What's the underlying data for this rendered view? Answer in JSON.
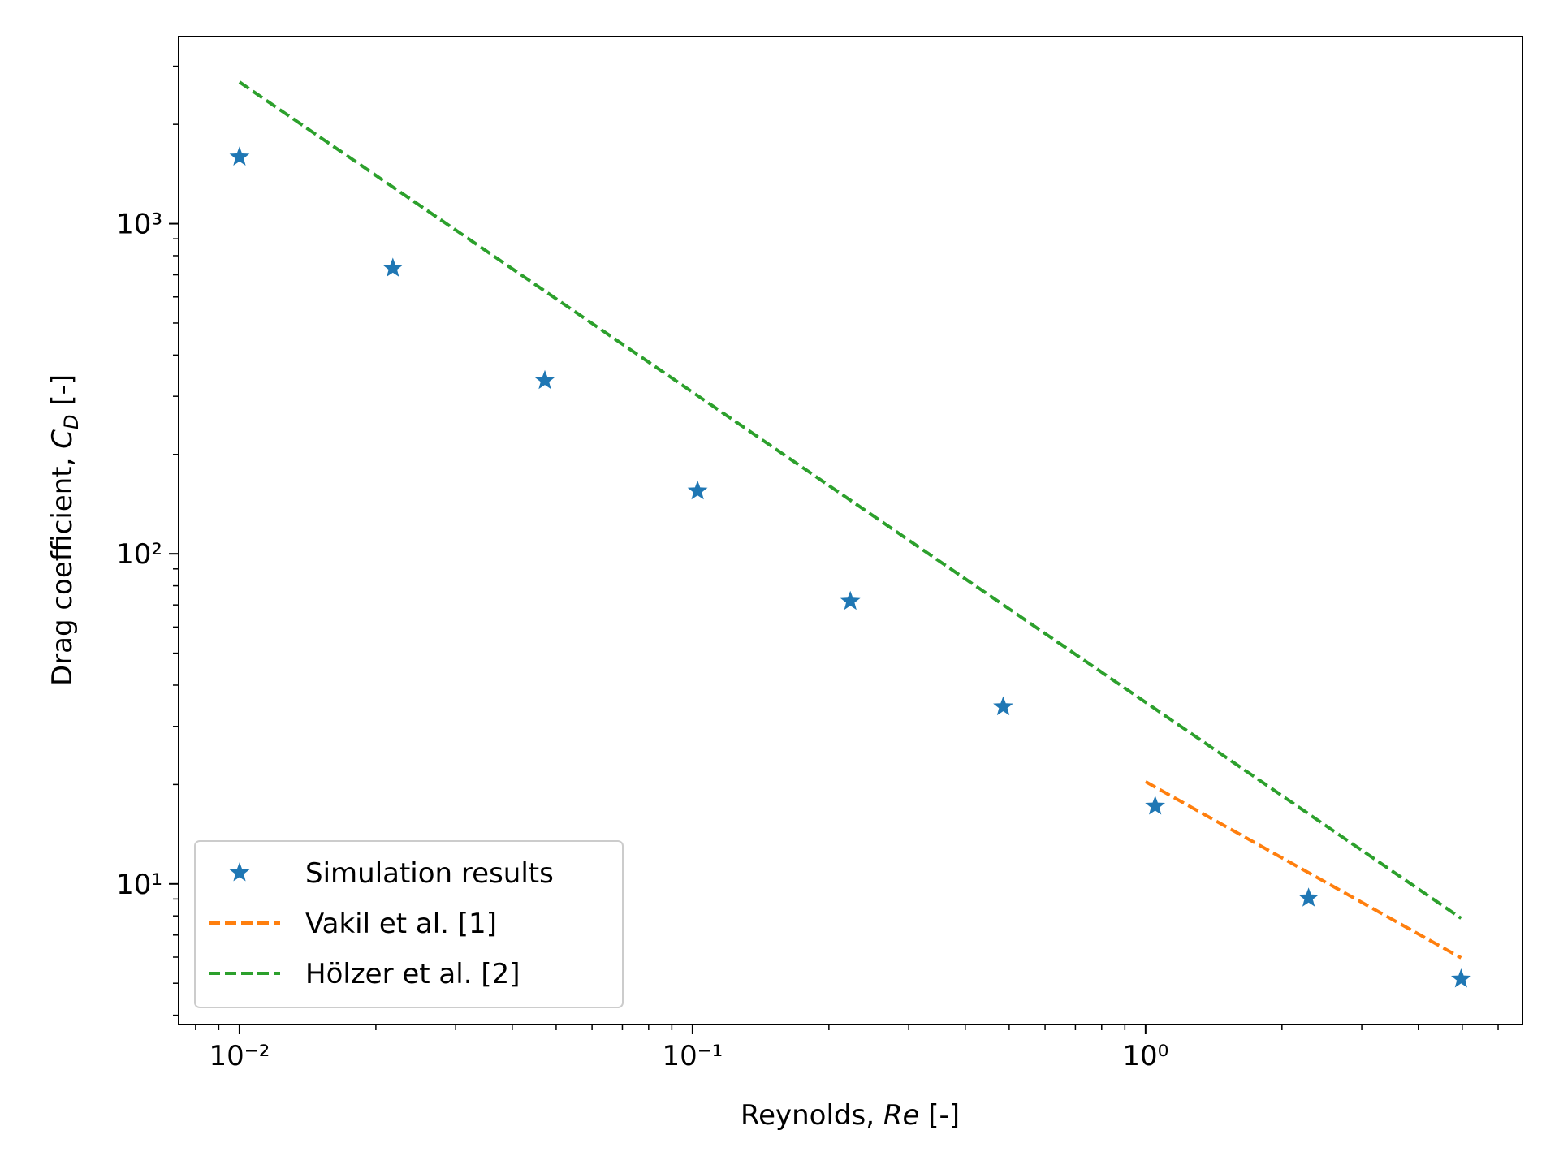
{
  "chart_data": {
    "type": "scatter",
    "xlabel": [
      "Reynolds, ",
      "Re",
      " [-]"
    ],
    "ylabel": [
      "Drag coefficient, ",
      "C",
      "D",
      " [-]"
    ],
    "xscale": "log",
    "yscale": "log",
    "xlim": [
      0.00734,
      6.79
    ],
    "ylim": [
      3.75,
      3690
    ],
    "xticks": [
      {
        "value": 0.01,
        "label": "10⁻²"
      },
      {
        "value": 0.1,
        "label": "10⁻¹"
      },
      {
        "value": 1,
        "label": "10⁰"
      }
    ],
    "yticks": [
      {
        "value": 10,
        "label": "10¹"
      },
      {
        "value": 100,
        "label": "10²"
      },
      {
        "value": 1000,
        "label": "10³"
      }
    ],
    "xminorticks": [
      0.008,
      0.009,
      0.02,
      0.03,
      0.04,
      0.05,
      0.06,
      0.07,
      0.08,
      0.09,
      0.2,
      0.3,
      0.4,
      0.5,
      0.6,
      0.7,
      0.8,
      0.9,
      2,
      3,
      4,
      5,
      6
    ],
    "yminorticks": [
      4,
      5,
      6,
      7,
      8,
      9,
      20,
      30,
      40,
      50,
      60,
      70,
      80,
      90,
      200,
      300,
      400,
      500,
      600,
      700,
      800,
      900,
      2000,
      3000
    ],
    "legend": "lower left",
    "series": [
      {
        "name": "Simulation results",
        "color": "#1f77b4",
        "style": "marker",
        "x": [
          0.01,
          0.0218,
          0.0472,
          0.1026,
          0.223,
          0.485,
          1.05,
          2.29,
          4.97
        ],
        "values": [
          1592,
          733,
          335,
          155,
          71.8,
          34.4,
          17.2,
          9.06,
          5.15
        ]
      },
      {
        "name": "Vakil et al. [1]",
        "color": "#ff7f0e",
        "style": "dashed",
        "x": [
          1,
          4.97
        ],
        "values": [
          20.4,
          5.97
        ]
      },
      {
        "name": "Hölzer et al. [2]",
        "color": "#2ca02c",
        "style": "dashed",
        "x": [
          0.01,
          4.97
        ],
        "values": [
          2686,
          7.87
        ]
      }
    ]
  }
}
